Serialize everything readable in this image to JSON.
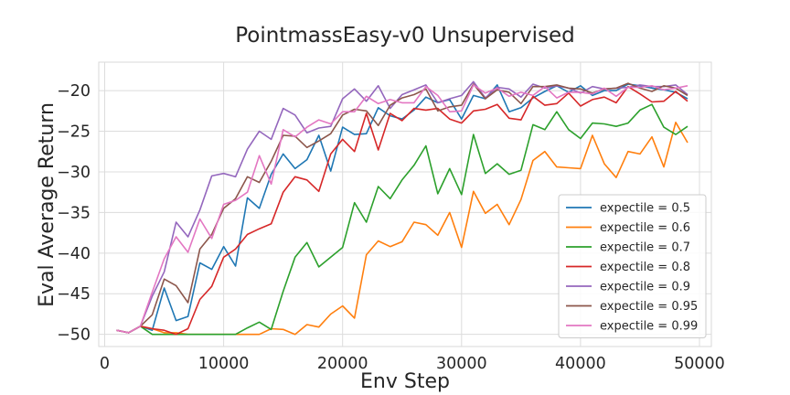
{
  "chart_data": {
    "type": "line",
    "title": "PointmassEasy-v0 Unsupervised",
    "xlabel": "Env Step",
    "ylabel": "Eval Average Return",
    "xlim": [
      -500,
      51000
    ],
    "ylim": [
      -51.5,
      -16.5
    ],
    "xticks": [
      0,
      10000,
      20000,
      30000,
      40000,
      50000
    ],
    "xtick_labels": [
      "0",
      "10000",
      "20000",
      "30000",
      "40000",
      "50000"
    ],
    "yticks": [
      -50,
      -45,
      -40,
      -35,
      -30,
      -25,
      -20
    ],
    "ytick_labels": [
      "−50",
      "−45",
      "−40",
      "−35",
      "−30",
      "−25",
      "−20"
    ],
    "grid": true,
    "legend_position": "lower-right",
    "x": [
      1000,
      2000,
      3000,
      4000,
      5000,
      6000,
      7000,
      8000,
      9000,
      10000,
      11000,
      12000,
      13000,
      14000,
      15000,
      16000,
      17000,
      18000,
      19000,
      20000,
      21000,
      22000,
      23000,
      24000,
      25000,
      26000,
      27000,
      28000,
      29000,
      30000,
      31000,
      32000,
      33000,
      34000,
      35000,
      36000,
      37000,
      38000,
      39000,
      40000,
      41000,
      42000,
      43000,
      44000,
      45000,
      46000,
      47000,
      48000,
      49000
    ],
    "series": [
      {
        "name": "expectile = 0.5",
        "color": "#1f77b4",
        "values": [
          -49.5,
          -49.8,
          -49.0,
          -49.5,
          -44.3,
          -48.3,
          -47.8,
          -41.2,
          -42.0,
          -39.2,
          -41.6,
          -33.2,
          -34.5,
          -30.3,
          -27.8,
          -29.6,
          -28.5,
          -25.5,
          -29.9,
          -24.5,
          -25.4,
          -25.3,
          -22.1,
          -23.1,
          -23.5,
          -22.4,
          -20.8,
          -21.5,
          -21.1,
          -23.5,
          -20.6,
          -21.0,
          -19.3,
          -22.6,
          -22.1,
          -20.9,
          -20.1,
          -19.4,
          -20.2,
          -19.4,
          -20.6,
          -20.0,
          -20.0,
          -19.2,
          -19.4,
          -19.7,
          -19.9,
          -20.2,
          -21.0
        ]
      },
      {
        "name": "expectile = 0.6",
        "color": "#ff7f0e",
        "values": [
          -49.5,
          -49.8,
          -49.0,
          -49.3,
          -49.8,
          -49.8,
          -50.0,
          -50.0,
          -50.0,
          -50.0,
          -50.0,
          -50.0,
          -50.0,
          -49.3,
          -49.4,
          -50.0,
          -48.8,
          -49.1,
          -47.5,
          -46.5,
          -48.0,
          -40.2,
          -38.5,
          -39.2,
          -38.6,
          -36.2,
          -36.5,
          -37.8,
          -35.0,
          -39.3,
          -32.4,
          -35.1,
          -34.0,
          -36.5,
          -33.4,
          -28.6,
          -27.5,
          -29.4,
          -29.5,
          -29.6,
          -25.5,
          -29.0,
          -30.7,
          -27.5,
          -27.8,
          -25.7,
          -29.4,
          -23.9,
          -26.4
        ]
      },
      {
        "name": "expectile = 0.7",
        "color": "#2ca02c",
        "values": [
          -49.5,
          -49.8,
          -49.0,
          -50.0,
          -50.0,
          -50.0,
          -50.0,
          -50.0,
          -50.0,
          -50.0,
          -50.0,
          -49.2,
          -48.5,
          -49.4,
          -44.7,
          -40.5,
          -38.7,
          -41.7,
          -40.5,
          -39.3,
          -33.8,
          -36.2,
          -31.8,
          -33.3,
          -31.0,
          -29.2,
          -26.8,
          -32.7,
          -29.6,
          -32.8,
          -25.4,
          -30.2,
          -29.0,
          -30.3,
          -29.8,
          -24.2,
          -24.8,
          -22.6,
          -24.8,
          -25.9,
          -24.0,
          -24.1,
          -24.4,
          -24.0,
          -22.4,
          -21.7,
          -24.5,
          -25.4,
          -24.4
        ]
      },
      {
        "name": "expectile = 0.8",
        "color": "#d62728",
        "values": [
          -49.5,
          -49.8,
          -49.0,
          -49.3,
          -49.5,
          -50.0,
          -49.3,
          -45.7,
          -44.1,
          -40.5,
          -39.5,
          -37.7,
          -37.0,
          -36.4,
          -32.5,
          -30.6,
          -31.0,
          -32.4,
          -27.8,
          -26.0,
          -27.5,
          -22.8,
          -27.3,
          -22.8,
          -23.7,
          -22.2,
          -22.4,
          -22.2,
          -23.5,
          -24.0,
          -22.5,
          -22.3,
          -21.7,
          -23.4,
          -23.6,
          -20.7,
          -21.8,
          -21.6,
          -20.3,
          -21.9,
          -21.1,
          -20.8,
          -21.5,
          -19.5,
          -20.4,
          -21.4,
          -21.3,
          -20.1,
          -21.3
        ]
      },
      {
        "name": "expectile = 0.9",
        "color": "#9467bd",
        "values": [
          -49.5,
          -49.8,
          -49.0,
          -45.3,
          -42.3,
          -36.2,
          -38.0,
          -34.7,
          -30.5,
          -30.2,
          -30.6,
          -27.2,
          -25.0,
          -26.0,
          -22.2,
          -23.0,
          -25.2,
          -24.6,
          -24.4,
          -21.0,
          -19.8,
          -21.3,
          -19.4,
          -22.2,
          -20.5,
          -19.9,
          -19.3,
          -21.5,
          -21.0,
          -20.6,
          -18.9,
          -20.9,
          -19.6,
          -19.8,
          -20.8,
          -19.2,
          -19.7,
          -19.4,
          -19.7,
          -20.3,
          -19.5,
          -19.8,
          -19.7,
          -19.6,
          -19.3,
          -19.5,
          -19.5,
          -19.3,
          -20.5
        ]
      },
      {
        "name": "expectile = 0.95",
        "color": "#8c564b",
        "values": [
          -49.5,
          -49.8,
          -49.0,
          -47.6,
          -43.2,
          -44.0,
          -46.1,
          -39.5,
          -37.7,
          -34.5,
          -33.3,
          -30.6,
          -31.3,
          -28.7,
          -25.5,
          -25.6,
          -27.0,
          -26.2,
          -25.3,
          -23.0,
          -22.3,
          -22.5,
          -24.3,
          -21.8,
          -20.9,
          -20.5,
          -19.8,
          -22.5,
          -22.0,
          -21.8,
          -19.2,
          -21.0,
          -19.9,
          -20.2,
          -21.6,
          -19.5,
          -19.5,
          -19.3,
          -19.7,
          -19.8,
          -20.3,
          -19.8,
          -19.7,
          -19.1,
          -19.7,
          -20.1,
          -19.4,
          -19.7,
          -20.6
        ]
      },
      {
        "name": "expectile = 0.99",
        "color": "#e377c2",
        "values": [
          -49.5,
          -49.8,
          -49.0,
          -44.8,
          -40.7,
          -38.0,
          -39.9,
          -35.8,
          -38.2,
          -34.0,
          -33.5,
          -32.5,
          -28.0,
          -31.5,
          -24.8,
          -25.7,
          -24.5,
          -23.6,
          -24.1,
          -22.6,
          -22.6,
          -20.7,
          -21.6,
          -21.1,
          -21.5,
          -21.5,
          -19.5,
          -20.6,
          -22.6,
          -22.5,
          -19.3,
          -20.3,
          -19.7,
          -20.7,
          -20.2,
          -20.6,
          -19.5,
          -20.9,
          -20.2,
          -20.2,
          -20.4,
          -19.7,
          -20.7,
          -19.6,
          -19.6,
          -19.4,
          -19.9,
          -19.7,
          -19.4
        ]
      }
    ]
  }
}
